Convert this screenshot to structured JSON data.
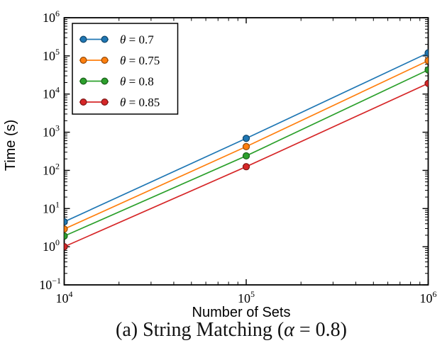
{
  "figure": {
    "caption": {
      "prefix": "(a) String Matching (",
      "alpha": "α",
      "suffix": " = 0.8)"
    }
  },
  "chart_data": {
    "type": "line",
    "title": "",
    "xlabel": "Number of Sets",
    "ylabel": "Time (s)",
    "x_scale": "log",
    "y_scale": "log",
    "xlim": [
      10000,
      1000000
    ],
    "ylim": [
      0.1,
      1000000
    ],
    "grid": false,
    "legend_position": "upper left",
    "x": [
      10000,
      100000,
      1000000
    ],
    "xtick_values": [
      10000,
      100000,
      1000000
    ],
    "xtick_labels": [
      "10^4",
      "10^5",
      "10^6"
    ],
    "ytick_values": [
      1000000,
      100000,
      10000,
      1000,
      100,
      10,
      1,
      0.1
    ],
    "ytick_labels": [
      "10^6",
      "10^5",
      "10^4",
      "10^3",
      "10^2",
      "10^1",
      "10^0",
      "10^−1"
    ],
    "marker": "circle",
    "series": [
      {
        "name": "θ = 0.7",
        "color": "#1f77b4",
        "values": [
          4.5,
          690,
          120000
        ]
      },
      {
        "name": "θ = 0.75",
        "color": "#ff7f0e",
        "values": [
          2.9,
          420,
          75000
        ]
      },
      {
        "name": "θ = 0.8",
        "color": "#2ca02c",
        "values": [
          1.9,
          240,
          43000
        ]
      },
      {
        "name": "θ = 0.85",
        "color": "#d62728",
        "values": [
          1.0,
          125,
          19000
        ]
      }
    ]
  }
}
